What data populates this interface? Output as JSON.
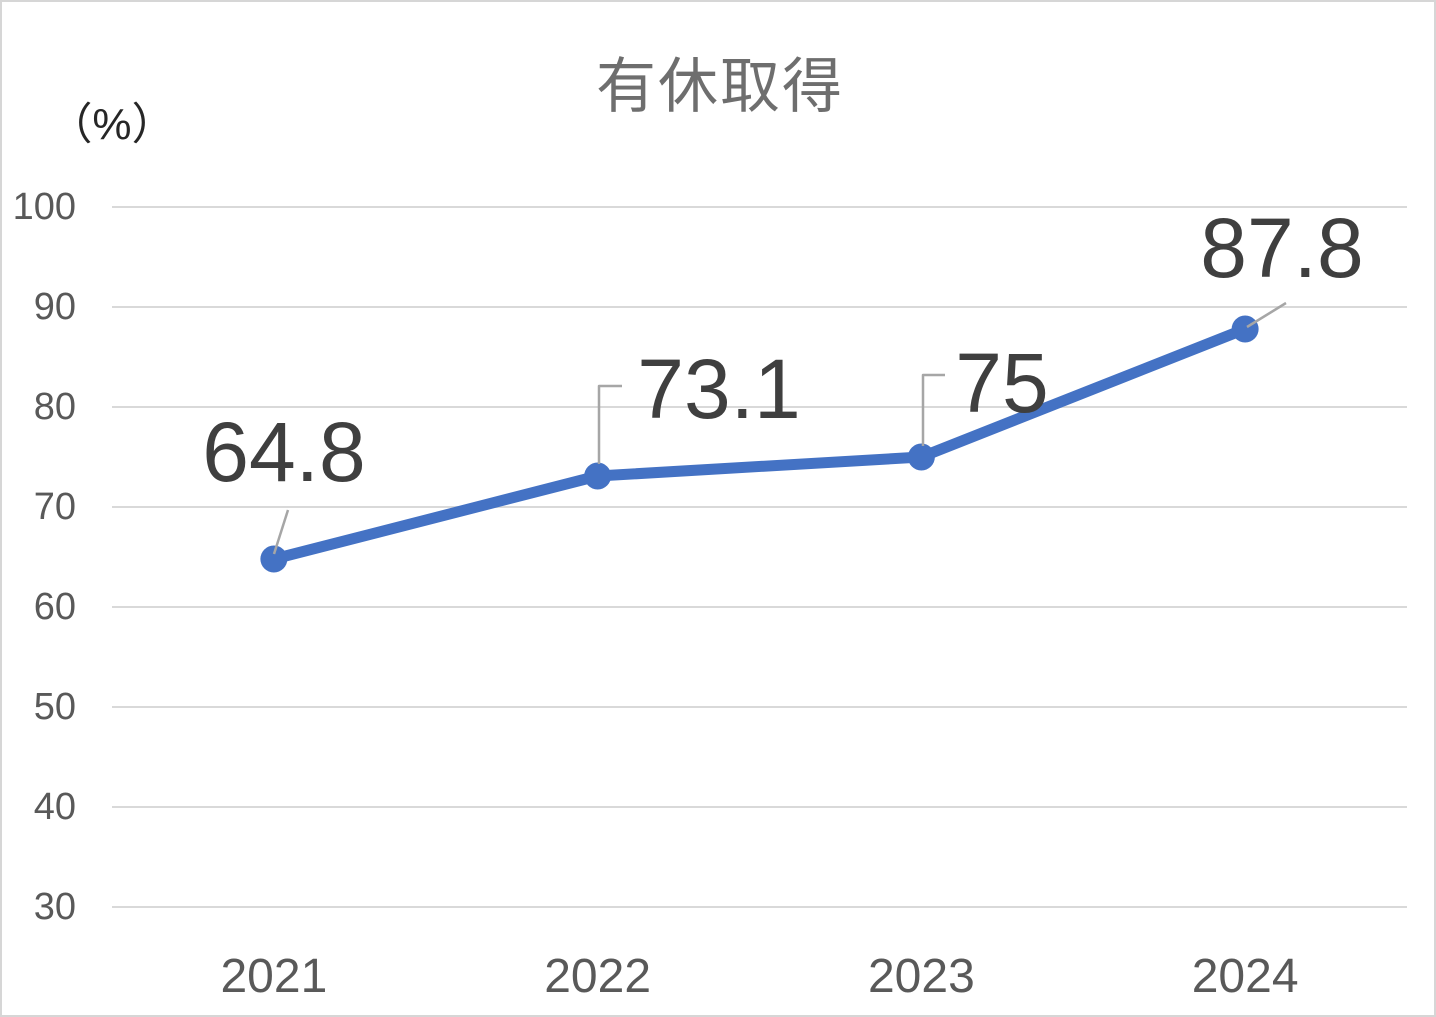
{
  "chart": {
    "title": "有休取得",
    "unit_label": "（%）",
    "colors": {
      "line": "#4472C4",
      "marker": "#4472C4",
      "gridline": "#D9D9D9",
      "leader_line": "#A6A6A6",
      "data_label": "#3F3F3F",
      "axis_label": "#595959",
      "title_color": "#6E6E6E",
      "unit_label_color": "#262626",
      "border": "#D6D6D6",
      "background": "#FFFFFF"
    }
  },
  "chart_data": {
    "type": "line",
    "title": "有休取得",
    "xlabel": "",
    "ylabel": "（%）",
    "categories": [
      "2021",
      "2022",
      "2023",
      "2024"
    ],
    "series": [
      {
        "name": "有休取得",
        "values": [
          64.8,
          73.1,
          75,
          87.8
        ]
      }
    ],
    "data_labels": [
      "64.8",
      "73.1",
      "75",
      "87.8"
    ],
    "ylim": [
      30,
      100
    ],
    "yticks": [
      100,
      90,
      80,
      70,
      60,
      50,
      40,
      30
    ],
    "grid": true,
    "legend": false,
    "marker": "circle"
  }
}
